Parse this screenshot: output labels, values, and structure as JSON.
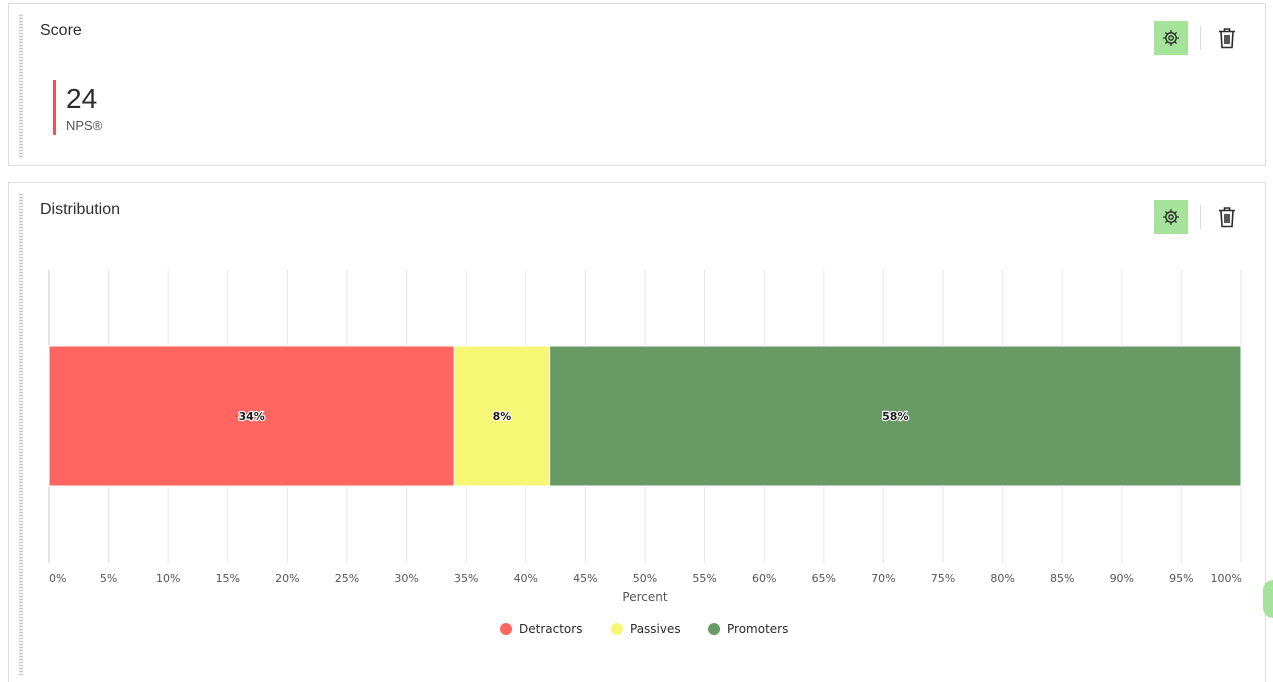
{
  "score_card": {
    "title": "Score",
    "value": "24",
    "label": "NPS®",
    "icons": {
      "settings": "gear-icon",
      "delete": "trash-icon"
    }
  },
  "distribution_card": {
    "title": "Distribution",
    "icons": {
      "settings": "gear-icon",
      "delete": "trash-icon"
    }
  },
  "colors": {
    "accent_button": "#a6e39a",
    "kpi_bar": "#e8584f",
    "detractors": "#ff6561",
    "passives": "#f6f774",
    "promoters": "#679a65"
  },
  "chart_data": {
    "type": "bar",
    "orientation": "horizontal",
    "stacked": true,
    "xlabel": "Percent",
    "xlim": [
      0,
      100
    ],
    "x_ticks": [
      0,
      5,
      10,
      15,
      20,
      25,
      30,
      35,
      40,
      45,
      50,
      55,
      60,
      65,
      70,
      75,
      80,
      85,
      90,
      95,
      100
    ],
    "x_tick_labels": [
      "0%",
      "5%",
      "10%",
      "15%",
      "20%",
      "25%",
      "30%",
      "35%",
      "40%",
      "45%",
      "50%",
      "55%",
      "60%",
      "65%",
      "70%",
      "75%",
      "80%",
      "85%",
      "90%",
      "95%",
      "100%"
    ],
    "grid": true,
    "legend_position": "bottom",
    "series": [
      {
        "name": "Detractors",
        "values": [
          34
        ],
        "label": "34%",
        "color": "#ff6561"
      },
      {
        "name": "Passives",
        "values": [
          8
        ],
        "label": "8%",
        "color": "#f6f774"
      },
      {
        "name": "Promoters",
        "values": [
          58
        ],
        "label": "58%",
        "color": "#679a65"
      }
    ]
  }
}
